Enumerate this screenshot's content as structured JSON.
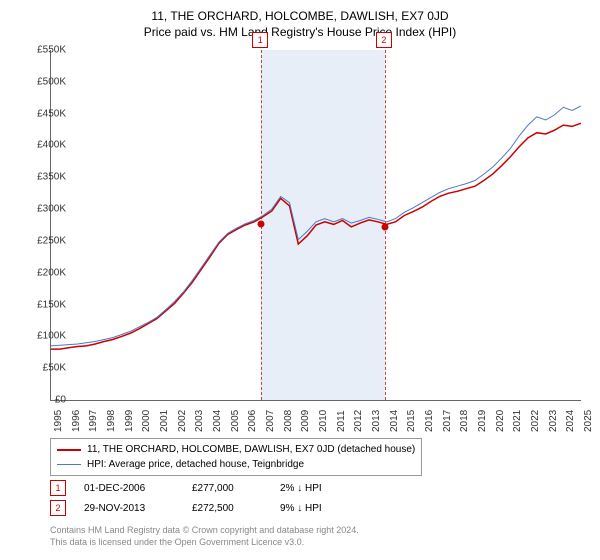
{
  "title_line1": "11, THE ORCHARD, HOLCOMBE, DAWLISH, EX7 0JD",
  "title_line2": "Price paid vs. HM Land Registry's House Price Index (HPI)",
  "chart": {
    "type": "line",
    "background_color": "#ffffff",
    "shaded_band_color": "#e8eef7",
    "dashed_color": "#d04040",
    "ylim": [
      0,
      550000
    ],
    "ytick_step": 50000,
    "y_labels": [
      "£0",
      "£50K",
      "£100K",
      "£150K",
      "£200K",
      "£250K",
      "£300K",
      "£350K",
      "£400K",
      "£450K",
      "£500K",
      "£550K"
    ],
    "x_years": [
      "1995",
      "1996",
      "1997",
      "1998",
      "1999",
      "2000",
      "2001",
      "2002",
      "2003",
      "2004",
      "2005",
      "2006",
      "2007",
      "2008",
      "2009",
      "2010",
      "2011",
      "2012",
      "2013",
      "2014",
      "2015",
      "2016",
      "2017",
      "2018",
      "2019",
      "2020",
      "2021",
      "2022",
      "2023",
      "2024",
      "2025"
    ],
    "xlim_idx": [
      0,
      30
    ],
    "band_start_idx": 11.9,
    "band_end_idx": 18.9,
    "series": [
      {
        "name": "property",
        "color": "#cc0000",
        "width": 1.5,
        "values": [
          80,
          80,
          82,
          84,
          85,
          88,
          92,
          95,
          100,
          105,
          112,
          120,
          128,
          140,
          152,
          168,
          185,
          205,
          225,
          246,
          260,
          268,
          275,
          280,
          288,
          297,
          317,
          305,
          245,
          258,
          275,
          280,
          276,
          282,
          272,
          278,
          283,
          280,
          276,
          280,
          290,
          296,
          303,
          312,
          320,
          325,
          328,
          332,
          336,
          345,
          355,
          368,
          382,
          398,
          412,
          420,
          418,
          424,
          432,
          430,
          435
        ]
      },
      {
        "name": "hpi",
        "color": "#4a78c4",
        "width": 1,
        "values": [
          85,
          86,
          87,
          88,
          90,
          92,
          95,
          98,
          103,
          108,
          115,
          122,
          130,
          142,
          155,
          170,
          188,
          208,
          228,
          248,
          262,
          270,
          277,
          282,
          290,
          300,
          320,
          310,
          252,
          265,
          280,
          285,
          280,
          285,
          278,
          282,
          287,
          284,
          280,
          285,
          295,
          302,
          310,
          318,
          326,
          332,
          336,
          340,
          345,
          355,
          366,
          380,
          395,
          415,
          432,
          445,
          440,
          448,
          460,
          455,
          462
        ]
      }
    ],
    "sale_dots": [
      {
        "x_idx": 11.9,
        "value": 277000
      },
      {
        "x_idx": 18.9,
        "value": 272500
      }
    ],
    "markers": [
      {
        "label": "1",
        "x_idx": 11.9
      },
      {
        "label": "2",
        "x_idx": 18.9
      }
    ]
  },
  "legend": {
    "items": [
      {
        "color": "#cc0000",
        "width": 2,
        "label": "11, THE ORCHARD, HOLCOMBE, DAWLISH, EX7 0JD (detached house)"
      },
      {
        "color": "#4a78c4",
        "width": 1,
        "label": "HPI: Average price, detached house, Teignbridge"
      }
    ]
  },
  "sales": [
    {
      "marker": "1",
      "date": "01-DEC-2006",
      "price": "£277,000",
      "diff": "2% ↓ HPI"
    },
    {
      "marker": "2",
      "date": "29-NOV-2013",
      "price": "£272,500",
      "diff": "9% ↓ HPI"
    }
  ],
  "footer_line1": "Contains HM Land Registry data © Crown copyright and database right 2024.",
  "footer_line2": "This data is licensed under the Open Government Licence v3.0."
}
